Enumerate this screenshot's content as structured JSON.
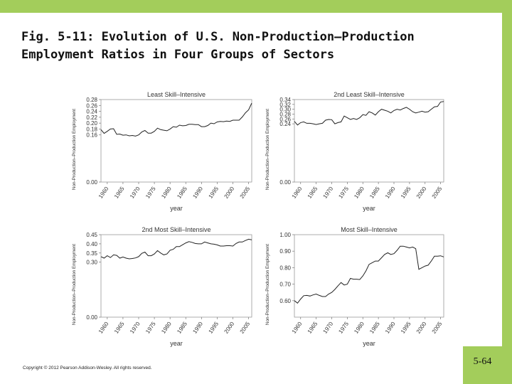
{
  "slide": {
    "title": "Fig. 5-11: Evolution of U.S. Non-Production–Production Employment Ratios in Four Groups of Sectors",
    "copyright": "Copyright © 2012 Pearson Addison-Wesley. All rights reserved.",
    "slide_number": "5-64",
    "accent_color": "#a3cd5b"
  },
  "chart_data": [
    {
      "type": "line",
      "title": "Least Skill–Intensive",
      "xlabel": "year",
      "ylabel": "Non-Production–Production Employment",
      "xlim": [
        1958,
        2006
      ],
      "ylim": [
        0.0,
        0.28
      ],
      "yticks": [
        "0.00",
        "0.16",
        "0.18",
        "0.20",
        "0.22",
        "0.24",
        "0.26",
        "0.28"
      ],
      "xticks": [
        "1960",
        "1965",
        "1970",
        "1975",
        "1980",
        "1985",
        "1990",
        "1995",
        "2000",
        "2005"
      ],
      "line_color": "#222222",
      "x": [
        1958,
        1959,
        1960,
        1961,
        1962,
        1963,
        1964,
        1965,
        1966,
        1967,
        1968,
        1969,
        1970,
        1971,
        1972,
        1973,
        1974,
        1975,
        1976,
        1977,
        1978,
        1979,
        1980,
        1981,
        1982,
        1983,
        1984,
        1985,
        1986,
        1987,
        1988,
        1989,
        1990,
        1991,
        1992,
        1993,
        1994,
        1995,
        1996,
        1997,
        1998,
        1999,
        2000,
        2001,
        2002,
        2003,
        2004,
        2005,
        2006
      ],
      "values": [
        0.178,
        0.165,
        0.172,
        0.18,
        0.181,
        0.162,
        0.163,
        0.159,
        0.16,
        0.157,
        0.158,
        0.156,
        0.16,
        0.17,
        0.175,
        0.166,
        0.166,
        0.172,
        0.183,
        0.178,
        0.176,
        0.174,
        0.18,
        0.188,
        0.186,
        0.193,
        0.191,
        0.192,
        0.196,
        0.196,
        0.195,
        0.195,
        0.188,
        0.188,
        0.192,
        0.2,
        0.198,
        0.204,
        0.206,
        0.205,
        0.207,
        0.206,
        0.21,
        0.21,
        0.21,
        0.221,
        0.235,
        0.245,
        0.268
      ]
    },
    {
      "type": "line",
      "title": "2nd Least Skill–Intensive",
      "xlabel": "year",
      "ylabel": "Non-Production–Production Employment",
      "xlim": [
        1958,
        2006
      ],
      "ylim": [
        0.0,
        0.34
      ],
      "yticks": [
        "0.00",
        "0.24",
        "0.26",
        "0.28",
        "0.30",
        "0.32",
        "0.34"
      ],
      "xticks": [
        "1960",
        "1965",
        "1970",
        "1975",
        "1980",
        "1985",
        "1990",
        "1995",
        "2000",
        "2005"
      ],
      "line_color": "#222222",
      "x": [
        1958,
        1959,
        1960,
        1961,
        1962,
        1963,
        1964,
        1965,
        1966,
        1967,
        1968,
        1969,
        1970,
        1971,
        1972,
        1973,
        1974,
        1975,
        1976,
        1977,
        1978,
        1979,
        1980,
        1981,
        1982,
        1983,
        1984,
        1985,
        1986,
        1987,
        1988,
        1989,
        1990,
        1991,
        1992,
        1993,
        1994,
        1995,
        1996,
        1997,
        1998,
        1999,
        2000,
        2001,
        2002,
        2003,
        2004,
        2005,
        2006
      ],
      "values": [
        0.25,
        0.235,
        0.245,
        0.248,
        0.242,
        0.242,
        0.24,
        0.237,
        0.24,
        0.242,
        0.255,
        0.258,
        0.257,
        0.24,
        0.245,
        0.248,
        0.272,
        0.265,
        0.258,
        0.262,
        0.258,
        0.265,
        0.278,
        0.275,
        0.29,
        0.285,
        0.276,
        0.29,
        0.3,
        0.296,
        0.292,
        0.285,
        0.295,
        0.3,
        0.297,
        0.303,
        0.308,
        0.3,
        0.29,
        0.285,
        0.288,
        0.292,
        0.288,
        0.29,
        0.3,
        0.31,
        0.312,
        0.33,
        0.332
      ]
    },
    {
      "type": "line",
      "title": "2nd Most Skill–Intensive",
      "xlabel": "year",
      "ylabel": "Non-Production–Production Employment",
      "xlim": [
        1958,
        2006
      ],
      "ylim": [
        0.0,
        0.45
      ],
      "yticks": [
        "0.00",
        "0.30",
        "0.35",
        "0.40",
        "0.45"
      ],
      "xticks": [
        "1960",
        "1965",
        "1970",
        "1975",
        "1980",
        "1985",
        "1990",
        "1995",
        "2000",
        "2005"
      ],
      "line_color": "#222222",
      "x": [
        1958,
        1959,
        1960,
        1961,
        1962,
        1963,
        1964,
        1965,
        1966,
        1967,
        1968,
        1969,
        1970,
        1971,
        1972,
        1973,
        1974,
        1975,
        1976,
        1977,
        1978,
        1979,
        1980,
        1981,
        1982,
        1983,
        1984,
        1985,
        1986,
        1987,
        1988,
        1989,
        1990,
        1991,
        1992,
        1993,
        1994,
        1995,
        1996,
        1997,
        1998,
        1999,
        2000,
        2001,
        2002,
        2003,
        2004,
        2005,
        2006
      ],
      "values": [
        0.33,
        0.322,
        0.335,
        0.325,
        0.34,
        0.337,
        0.322,
        0.328,
        0.322,
        0.318,
        0.32,
        0.323,
        0.33,
        0.348,
        0.355,
        0.335,
        0.335,
        0.345,
        0.363,
        0.35,
        0.34,
        0.345,
        0.365,
        0.37,
        0.385,
        0.385,
        0.395,
        0.405,
        0.412,
        0.408,
        0.402,
        0.4,
        0.4,
        0.41,
        0.405,
        0.4,
        0.398,
        0.394,
        0.388,
        0.388,
        0.39,
        0.39,
        0.388,
        0.402,
        0.41,
        0.41,
        0.418,
        0.425,
        0.422
      ]
    },
    {
      "type": "line",
      "title": "Most Skill–Intensive",
      "xlabel": "year",
      "ylabel": "Non-Production–Production Employment",
      "xlim": [
        1958,
        2006
      ],
      "ylim": [
        0.5,
        1.0
      ],
      "yticks": [
        "0.60",
        "0.70",
        "0.80",
        "0.90",
        "1.00"
      ],
      "xticks": [
        "1960",
        "1965",
        "1970",
        "1975",
        "1980",
        "1985",
        "1990",
        "1995",
        "2000",
        "2005"
      ],
      "line_color": "#222222",
      "x": [
        1958,
        1959,
        1960,
        1961,
        1962,
        1963,
        1964,
        1965,
        1966,
        1967,
        1968,
        1969,
        1970,
        1971,
        1972,
        1973,
        1974,
        1975,
        1976,
        1977,
        1978,
        1979,
        1980,
        1981,
        1982,
        1983,
        1984,
        1985,
        1986,
        1987,
        1988,
        1989,
        1990,
        1991,
        1992,
        1993,
        1994,
        1995,
        1996,
        1997,
        1998,
        1999,
        2000,
        2001,
        2002,
        2003,
        2004,
        2005,
        2006
      ],
      "values": [
        0.6,
        0.585,
        0.61,
        0.63,
        0.632,
        0.628,
        0.635,
        0.64,
        0.632,
        0.625,
        0.625,
        0.64,
        0.65,
        0.668,
        0.69,
        0.71,
        0.695,
        0.7,
        0.735,
        0.73,
        0.73,
        0.728,
        0.75,
        0.78,
        0.82,
        0.83,
        0.84,
        0.84,
        0.86,
        0.88,
        0.89,
        0.88,
        0.885,
        0.905,
        0.93,
        0.93,
        0.925,
        0.92,
        0.925,
        0.915,
        0.79,
        0.8,
        0.81,
        0.815,
        0.84,
        0.87,
        0.87,
        0.872,
        0.865
      ]
    }
  ]
}
